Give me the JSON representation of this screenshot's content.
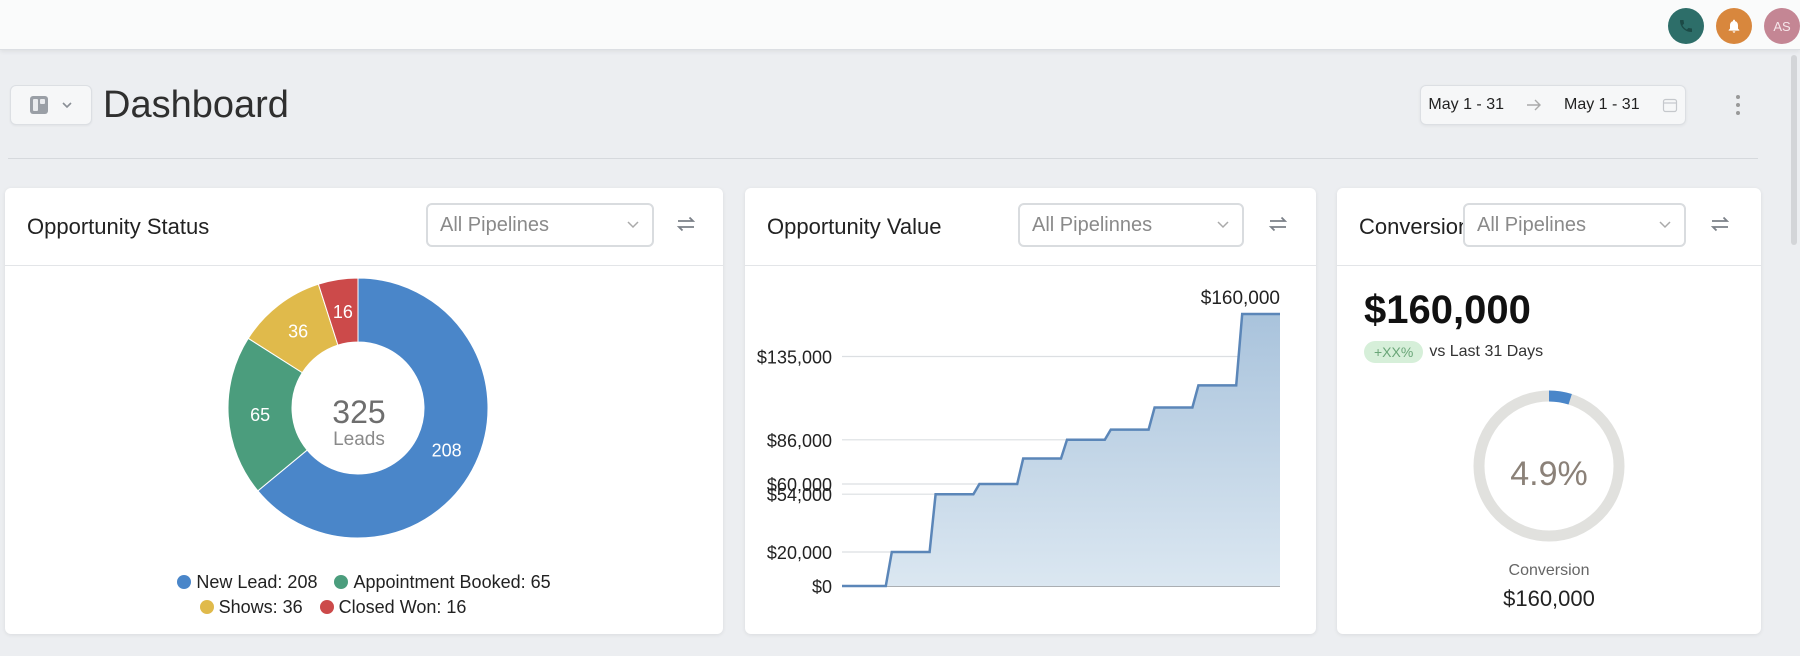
{
  "topbar": {
    "avatar_initials": "AS",
    "icons": [
      "phone-icon",
      "bell-icon"
    ],
    "colors": {
      "phone": "#2d6e69",
      "bell": "#d8873d",
      "avatar": "#c48694"
    }
  },
  "header": {
    "title": "Dashboard",
    "date_start": "May 1 - 31",
    "date_end": "May 1 - 31"
  },
  "cards": {
    "status": {
      "title": "Opportunity Status",
      "filter": "All Pipelines",
      "center_value": "325",
      "center_label": "Leads",
      "legend": [
        {
          "label": "New Lead: 208",
          "color": "#4a86c9"
        },
        {
          "label": "Appointment Booked: 65",
          "color": "#4b9d7d"
        },
        {
          "label": "Shows: 36",
          "color": "#e0ba4b"
        },
        {
          "label": "Closed Won: 16",
          "color": "#cc4a4a"
        }
      ]
    },
    "value": {
      "title": "Opportunity Value",
      "filter": "All Pipelinnes"
    },
    "conversion": {
      "title": "Conversion",
      "filter": "All Pipelines",
      "big_value": "$160,000",
      "delta_badge": "+XX%",
      "delta_text": "vs Last 31 Days",
      "gauge_value": "4.9%",
      "gauge_percent": 4.9,
      "footer_label": "Conversion",
      "footer_value": "$160,000"
    }
  },
  "chart_data": [
    {
      "type": "pie",
      "title": "Opportunity Status",
      "center_text": "325 Leads",
      "categories": [
        "New Lead",
        "Appointment Booked",
        "Shows",
        "Closed Won"
      ],
      "values": [
        208,
        65,
        36,
        16
      ],
      "colors": [
        "#4a86c9",
        "#4b9d7d",
        "#e0ba4b",
        "#cc4a4a"
      ],
      "legend": "bottom"
    },
    {
      "type": "area",
      "title": "Opportunity Value",
      "step": true,
      "yticks": [
        0,
        20000,
        54000,
        60000,
        86000,
        135000
      ],
      "ytick_labels": [
        "$0",
        "$20,000",
        "$54,000",
        "$60,000",
        "$86,000",
        "$135,000"
      ],
      "end_label": "$160,000",
      "x": [
        0,
        1,
        2,
        3,
        4,
        5,
        6,
        7,
        8,
        9
      ],
      "values": [
        0,
        20000,
        54000,
        60000,
        75000,
        86000,
        92000,
        105000,
        118000,
        160000
      ],
      "color": "#5b86b8",
      "fill": "#c8dae9",
      "grid": true
    }
  ]
}
